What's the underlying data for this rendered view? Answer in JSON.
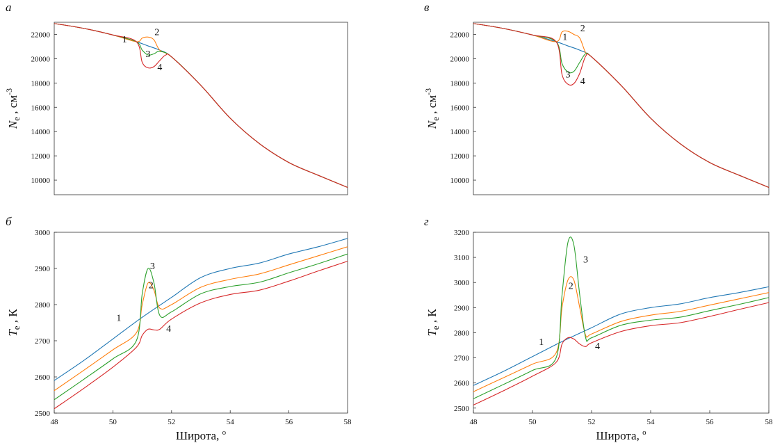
{
  "colors": {
    "1": "#1f77b4",
    "2": "#ff7f0e",
    "3": "#2ca02c",
    "4": "#d62728",
    "axis": "#333333"
  },
  "chart_data": [
    {
      "id": "a",
      "type": "line",
      "panel_label": "а",
      "ylabel": {
        "italic": "N",
        "sub": "e",
        "text": " , см",
        "sup": "-3"
      },
      "xlabel": "",
      "xlim": [
        48,
        58
      ],
      "ylim": [
        8800,
        23000
      ],
      "xticks": [],
      "yticks": [
        10000,
        12000,
        14000,
        16000,
        18000,
        20000,
        22000
      ],
      "series": [
        {
          "key": "1",
          "name": "1",
          "x": [
            48,
            49,
            50,
            50.8,
            51.2,
            51.6,
            52,
            53,
            54,
            55,
            56,
            57,
            58
          ],
          "y": [
            22900,
            22500,
            21950,
            21400,
            21050,
            20700,
            20150,
            17800,
            15100,
            13000,
            11450,
            10400,
            9400
          ]
        },
        {
          "key": "2",
          "name": "2",
          "x": [
            48,
            49,
            50,
            50.8,
            51.0,
            51.2,
            51.4,
            51.6,
            52,
            53,
            54,
            55,
            56,
            57,
            58
          ],
          "y": [
            22900,
            22500,
            21950,
            21400,
            21700,
            21780,
            21550,
            20700,
            20150,
            17800,
            15100,
            13000,
            11450,
            10400,
            9400
          ]
        },
        {
          "key": "3",
          "name": "3",
          "x": [
            48,
            49,
            50,
            50.8,
            51.0,
            51.2,
            51.4,
            51.6,
            52,
            53,
            54,
            55,
            56,
            57,
            58
          ],
          "y": [
            22900,
            22500,
            21950,
            21400,
            20700,
            20300,
            20400,
            20600,
            20150,
            17800,
            15100,
            13000,
            11450,
            10400,
            9400
          ]
        },
        {
          "key": "4",
          "name": "4",
          "x": [
            48,
            49,
            50,
            50.8,
            51.0,
            51.2,
            51.4,
            51.6,
            51.8,
            52,
            53,
            54,
            55,
            56,
            57,
            58
          ],
          "y": [
            22900,
            22500,
            21950,
            21400,
            19700,
            19250,
            19350,
            19850,
            20300,
            20150,
            17800,
            15100,
            13000,
            11450,
            10400,
            9400
          ]
        }
      ],
      "curve_labels": [
        {
          "text": "1",
          "x": 50.4,
          "y": 21350
        },
        {
          "text": "2",
          "x": 51.5,
          "y": 21950
        },
        {
          "text": "3",
          "x": 51.2,
          "y": 20150
        },
        {
          "text": "4",
          "x": 51.6,
          "y": 19050
        }
      ]
    },
    {
      "id": "v",
      "type": "line",
      "panel_label": "в",
      "ylabel": {
        "italic": "N",
        "sub": "e",
        "text": " , см",
        "sup": "-3"
      },
      "xlabel": "",
      "xlim": [
        48,
        58
      ],
      "ylim": [
        8800,
        23000
      ],
      "xticks": [],
      "yticks": [
        10000,
        12000,
        14000,
        16000,
        18000,
        20000,
        22000
      ],
      "series": [
        {
          "key": "1",
          "name": "1",
          "x": [
            48,
            49,
            50,
            50.8,
            51.2,
            51.6,
            52,
            53,
            54,
            55,
            56,
            57,
            58
          ],
          "y": [
            22900,
            22500,
            21950,
            21400,
            21050,
            20700,
            20150,
            17800,
            15100,
            13000,
            11450,
            10400,
            9400
          ]
        },
        {
          "key": "2",
          "name": "2",
          "x": [
            48,
            49,
            50,
            50.8,
            51.0,
            51.2,
            51.4,
            51.6,
            51.8,
            52,
            53,
            54,
            55,
            56,
            57,
            58
          ],
          "y": [
            22900,
            22500,
            21950,
            21400,
            22200,
            22250,
            22000,
            21700,
            20500,
            20150,
            17800,
            15100,
            13000,
            11450,
            10400,
            9400
          ]
        },
        {
          "key": "3",
          "name": "3",
          "x": [
            48,
            49,
            50,
            50.8,
            51.0,
            51.2,
            51.4,
            51.6,
            51.8,
            52,
            53,
            54,
            55,
            56,
            57,
            58
          ],
          "y": [
            22900,
            22500,
            21950,
            21400,
            19600,
            18900,
            18950,
            19700,
            20400,
            20150,
            17800,
            15100,
            13000,
            11450,
            10400,
            9400
          ]
        },
        {
          "key": "4",
          "name": "4",
          "x": [
            48,
            49,
            50,
            50.8,
            51.0,
            51.2,
            51.4,
            51.6,
            51.8,
            52,
            53,
            54,
            55,
            56,
            57,
            58
          ],
          "y": [
            22900,
            22500,
            21950,
            21400,
            18700,
            17900,
            17950,
            18800,
            20200,
            20150,
            17800,
            15100,
            13000,
            11450,
            10400,
            9400
          ]
        }
      ],
      "curve_labels": [
        {
          "text": "1",
          "x": 51.1,
          "y": 21550
        },
        {
          "text": "2",
          "x": 51.7,
          "y": 22250
        },
        {
          "text": "3",
          "x": 51.2,
          "y": 18450
        },
        {
          "text": "4",
          "x": 51.7,
          "y": 17900
        }
      ]
    },
    {
      "id": "b",
      "type": "line",
      "panel_label": "б",
      "ylabel": {
        "italic": "T",
        "sub": "e",
        "text": " , К",
        "sup": ""
      },
      "xlabel": "Широта, ",
      "xlabel_sup": "о",
      "xlim": [
        48,
        58
      ],
      "ylim": [
        2500,
        3000
      ],
      "xticks": [
        48,
        50,
        52,
        54,
        56,
        58
      ],
      "yticks": [
        2500,
        2600,
        2700,
        2800,
        2900,
        3000
      ],
      "series": [
        {
          "key": "1",
          "name": "1",
          "x": [
            48,
            49,
            50,
            51,
            52,
            53,
            54,
            55,
            56,
            57,
            58
          ],
          "y": [
            2590,
            2645,
            2705,
            2765,
            2820,
            2875,
            2900,
            2915,
            2940,
            2960,
            2983
          ]
        },
        {
          "key": "2",
          "name": "2",
          "x": [
            48,
            49,
            50,
            50.8,
            51.0,
            51.2,
            51.4,
            51.6,
            52,
            53,
            54,
            55,
            56,
            57,
            58
          ],
          "y": [
            2562,
            2618,
            2675,
            2722,
            2800,
            2860,
            2840,
            2790,
            2800,
            2848,
            2870,
            2885,
            2910,
            2935,
            2960
          ]
        },
        {
          "key": "3",
          "name": "3",
          "x": [
            48,
            49,
            50,
            50.8,
            51.0,
            51.2,
            51.4,
            51.6,
            52,
            53,
            54,
            55,
            56,
            57,
            58
          ],
          "y": [
            2537,
            2593,
            2650,
            2700,
            2830,
            2900,
            2860,
            2770,
            2780,
            2830,
            2850,
            2862,
            2888,
            2913,
            2940
          ]
        },
        {
          "key": "4",
          "name": "4",
          "x": [
            48,
            49,
            50,
            50.8,
            51.0,
            51.2,
            51.4,
            51.6,
            52,
            53,
            54,
            55,
            56,
            57,
            58
          ],
          "y": [
            2512,
            2568,
            2627,
            2682,
            2715,
            2732,
            2730,
            2732,
            2760,
            2805,
            2828,
            2840,
            2865,
            2893,
            2920
          ]
        }
      ],
      "curve_labels": [
        {
          "text": "1",
          "x": 50.2,
          "y": 2755
        },
        {
          "text": "2",
          "x": 51.3,
          "y": 2845
        },
        {
          "text": "3",
          "x": 51.35,
          "y": 2898
        },
        {
          "text": "4",
          "x": 51.9,
          "y": 2725
        }
      ]
    },
    {
      "id": "g",
      "type": "line",
      "panel_label": "г",
      "ylabel": {
        "italic": "T",
        "sub": "e",
        "text": " , К",
        "sup": ""
      },
      "xlabel": "Широта, ",
      "xlabel_sup": "о",
      "xlim": [
        48,
        58
      ],
      "ylim": [
        2480,
        3200
      ],
      "xticks": [
        48,
        50,
        52,
        54,
        56,
        58
      ],
      "yticks": [
        2500,
        2600,
        2700,
        2800,
        2900,
        3000,
        3100,
        3200
      ],
      "series": [
        {
          "key": "1",
          "name": "1",
          "x": [
            48,
            49,
            50,
            51,
            52,
            53,
            54,
            55,
            56,
            57,
            58
          ],
          "y": [
            2590,
            2645,
            2705,
            2765,
            2820,
            2875,
            2900,
            2915,
            2940,
            2960,
            2983
          ]
        },
        {
          "key": "2",
          "name": "2",
          "x": [
            48,
            49,
            50,
            50.8,
            51.0,
            51.2,
            51.4,
            51.6,
            51.8,
            52,
            53,
            54,
            55,
            56,
            57,
            58
          ],
          "y": [
            2565,
            2620,
            2675,
            2720,
            2900,
            3010,
            3010,
            2900,
            2790,
            2795,
            2845,
            2870,
            2885,
            2910,
            2935,
            2960
          ]
        },
        {
          "key": "3",
          "name": "3",
          "x": [
            48,
            49,
            50,
            50.8,
            51.0,
            51.2,
            51.4,
            51.6,
            51.8,
            52,
            53,
            54,
            55,
            56,
            57,
            58
          ],
          "y": [
            2537,
            2593,
            2650,
            2700,
            2950,
            3160,
            3150,
            2950,
            2780,
            2780,
            2830,
            2850,
            2862,
            2888,
            2913,
            2940
          ]
        },
        {
          "key": "4",
          "name": "4",
          "x": [
            48,
            49,
            50,
            50.8,
            51.0,
            51.2,
            51.4,
            51.6,
            51.8,
            52,
            53,
            54,
            55,
            56,
            57,
            58
          ],
          "y": [
            2512,
            2568,
            2627,
            2682,
            2755,
            2780,
            2775,
            2755,
            2745,
            2760,
            2805,
            2828,
            2840,
            2865,
            2893,
            2920
          ]
        }
      ],
      "curve_labels": [
        {
          "text": "1",
          "x": 50.3,
          "y": 2752
        },
        {
          "text": "2",
          "x": 51.3,
          "y": 2975
        },
        {
          "text": "3",
          "x": 51.8,
          "y": 3080
        },
        {
          "text": "4",
          "x": 52.2,
          "y": 2735
        }
      ]
    }
  ]
}
